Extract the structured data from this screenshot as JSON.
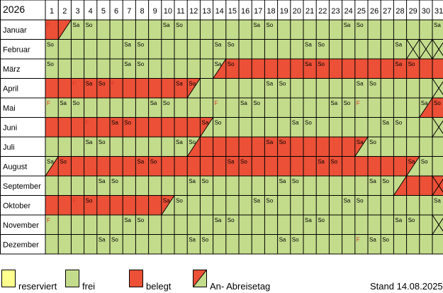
{
  "title": "2026",
  "days": [
    "1",
    "2",
    "3",
    "4",
    "5",
    "6",
    "7",
    "8",
    "9",
    "10",
    "11",
    "12",
    "13",
    "14",
    "15",
    "16",
    "17",
    "18",
    "19",
    "20",
    "21",
    "22",
    "23",
    "24",
    "25",
    "26",
    "27",
    "28",
    "29",
    "30",
    "31"
  ],
  "colors": {
    "frei": "#c3dc8c",
    "belegt": "#ec5037",
    "reserviert": "#ffff90",
    "grid": "#000000",
    "weekend_text": "#000000",
    "holiday_text": "#d9342b"
  },
  "months": [
    {
      "name": "Januar",
      "days_in_month": 31,
      "cells": [
        "F",
        "",
        "Sa",
        "So",
        "",
        "",
        "",
        "",
        "",
        "Sa",
        "So",
        "",
        "",
        "",
        "",
        "",
        "Sa",
        "So",
        "",
        "",
        "",
        "",
        "",
        "Sa",
        "So",
        "",
        "",
        "",
        "",
        "",
        "Sa"
      ],
      "status": [
        "b",
        "ab",
        "f",
        "f",
        "f",
        "f",
        "f",
        "f",
        "f",
        "f",
        "f",
        "f",
        "f",
        "f",
        "f",
        "f",
        "f",
        "f",
        "f",
        "f",
        "f",
        "f",
        "f",
        "f",
        "f",
        "f",
        "f",
        "f",
        "f",
        "f",
        "f"
      ]
    },
    {
      "name": "Februar",
      "days_in_month": 28,
      "cells": [
        "So",
        "",
        "",
        "",
        "",
        "",
        "Sa",
        "So",
        "",
        "",
        "",
        "",
        "",
        "Sa",
        "So",
        "",
        "",
        "",
        "",
        "",
        "Sa",
        "So",
        "",
        "",
        "",
        "",
        "",
        "Sa",
        "",
        "",
        ""
      ],
      "status": [
        "f",
        "f",
        "f",
        "f",
        "f",
        "f",
        "f",
        "f",
        "f",
        "f",
        "f",
        "f",
        "f",
        "f",
        "f",
        "f",
        "f",
        "f",
        "f",
        "f",
        "f",
        "f",
        "f",
        "f",
        "f",
        "f",
        "f",
        "f",
        "x",
        "x",
        "x"
      ]
    },
    {
      "name": "März",
      "days_in_month": 31,
      "cells": [
        "So",
        "",
        "",
        "",
        "",
        "",
        "Sa",
        "So",
        "",
        "",
        "",
        "",
        "",
        "Sa",
        "So",
        "",
        "",
        "",
        "",
        "",
        "Sa",
        "So",
        "",
        "",
        "",
        "",
        "",
        "Sa",
        "So",
        "",
        ""
      ],
      "status": [
        "f",
        "f",
        "f",
        "f",
        "f",
        "f",
        "f",
        "f",
        "f",
        "f",
        "f",
        "f",
        "f",
        "fb",
        "b",
        "b",
        "b",
        "b",
        "b",
        "b",
        "b",
        "b",
        "b",
        "b",
        "b",
        "b",
        "b",
        "b",
        "b",
        "b",
        "b"
      ]
    },
    {
      "name": "April",
      "days_in_month": 30,
      "cells": [
        "",
        "",
        "F",
        "Sa",
        "So",
        "F",
        "",
        "",
        "",
        "",
        "Sa",
        "So",
        "",
        "",
        "",
        "",
        "",
        "Sa",
        "So",
        "",
        "",
        "",
        "",
        "",
        "Sa",
        "So",
        "",
        "",
        "",
        "",
        ""
      ],
      "status": [
        "b",
        "b",
        "b",
        "b",
        "b",
        "b",
        "b",
        "b",
        "b",
        "b",
        "b",
        "bf",
        "f",
        "f",
        "f",
        "f",
        "f",
        "f",
        "f",
        "f",
        "f",
        "f",
        "f",
        "f",
        "f",
        "f",
        "f",
        "f",
        "f",
        "f",
        "x"
      ]
    },
    {
      "name": "Mai",
      "days_in_month": 31,
      "cells": [
        "F",
        "Sa",
        "So",
        "",
        "",
        "",
        "",
        "",
        "Sa",
        "So",
        "",
        "",
        "",
        "F",
        "",
        "Sa",
        "So",
        "",
        "",
        "",
        "",
        "",
        "Sa",
        "So",
        "F",
        "",
        "",
        "",
        "",
        "Sa",
        "So"
      ],
      "status": [
        "f",
        "f",
        "f",
        "f",
        "f",
        "f",
        "f",
        "f",
        "f",
        "f",
        "f",
        "f",
        "f",
        "f",
        "f",
        "f",
        "f",
        "f",
        "f",
        "f",
        "f",
        "f",
        "f",
        "f",
        "f",
        "f",
        "f",
        "f",
        "f",
        "fb",
        "b"
      ]
    },
    {
      "name": "Juni",
      "days_in_month": 30,
      "cells": [
        "",
        "",
        "",
        "F",
        "",
        "Sa",
        "So",
        "",
        "",
        "",
        "",
        "",
        "Sa",
        "So",
        "",
        "",
        "",
        "",
        "",
        "Sa",
        "So",
        "",
        "",
        "",
        "",
        "",
        "Sa",
        "So",
        "",
        "",
        ""
      ],
      "status": [
        "b",
        "b",
        "b",
        "b",
        "b",
        "b",
        "b",
        "b",
        "b",
        "b",
        "b",
        "b",
        "bf",
        "f",
        "f",
        "f",
        "f",
        "f",
        "f",
        "f",
        "f",
        "f",
        "f",
        "f",
        "f",
        "f",
        "f",
        "f",
        "f",
        "f",
        "x"
      ]
    },
    {
      "name": "Juli",
      "days_in_month": 31,
      "cells": [
        "",
        "",
        "",
        "Sa",
        "So",
        "",
        "",
        "",
        "",
        "",
        "Sa",
        "So",
        "",
        "",
        "",
        "",
        "",
        "Sa",
        "So",
        "",
        "",
        "",
        "",
        "",
        "Sa",
        "So",
        "",
        "",
        "",
        "",
        ""
      ],
      "status": [
        "f",
        "f",
        "f",
        "f",
        "f",
        "f",
        "f",
        "f",
        "f",
        "f",
        "f",
        "fb",
        "b",
        "b",
        "b",
        "b",
        "b",
        "b",
        "b",
        "b",
        "b",
        "b",
        "b",
        "b",
        "bf",
        "f",
        "f",
        "f",
        "f",
        "f",
        "f"
      ]
    },
    {
      "name": "August",
      "days_in_month": 31,
      "cells": [
        "Sa",
        "So",
        "",
        "",
        "",
        "",
        "",
        "Sa",
        "So",
        "",
        "",
        "",
        "",
        "",
        "Sa",
        "So",
        "",
        "",
        "",
        "",
        "",
        "Sa",
        "So",
        "",
        "",
        "",
        "",
        "",
        "Sa",
        "So",
        ""
      ],
      "status": [
        "fb",
        "b",
        "b",
        "b",
        "b",
        "b",
        "b",
        "b",
        "b",
        "b",
        "b",
        "b",
        "b",
        "b",
        "b",
        "b",
        "b",
        "b",
        "b",
        "b",
        "b",
        "b",
        "b",
        "b",
        "b",
        "b",
        "b",
        "b",
        "bf",
        "f",
        "f"
      ]
    },
    {
      "name": "September",
      "days_in_month": 30,
      "cells": [
        "",
        "",
        "",
        "",
        "Sa",
        "So",
        "",
        "",
        "",
        "",
        "",
        "Sa",
        "So",
        "",
        "",
        "",
        "",
        "",
        "Sa",
        "So",
        "",
        "",
        "",
        "",
        "",
        "Sa",
        "So",
        "",
        "",
        "",
        ""
      ],
      "status": [
        "f",
        "f",
        "f",
        "f",
        "f",
        "f",
        "f",
        "f",
        "f",
        "f",
        "f",
        "f",
        "f",
        "f",
        "f",
        "f",
        "f",
        "f",
        "f",
        "f",
        "f",
        "f",
        "f",
        "f",
        "f",
        "f",
        "f",
        "fb",
        "b",
        "b",
        "bx"
      ]
    },
    {
      "name": "Oktober",
      "days_in_month": 31,
      "cells": [
        "",
        "",
        "F",
        "So",
        "",
        "",
        "",
        "",
        "",
        "Sa",
        "So",
        "",
        "",
        "",
        "",
        "",
        "Sa",
        "So",
        "",
        "",
        "",
        "",
        "",
        "Sa",
        "So",
        "",
        "",
        "",
        "",
        "",
        "Sa"
      ],
      "status": [
        "b",
        "b",
        "b",
        "b",
        "b",
        "b",
        "b",
        "b",
        "b",
        "bf",
        "f",
        "f",
        "f",
        "f",
        "f",
        "f",
        "f",
        "f",
        "f",
        "f",
        "f",
        "f",
        "f",
        "f",
        "f",
        "f",
        "f",
        "f",
        "f",
        "f",
        "f"
      ]
    },
    {
      "name": "November",
      "days_in_month": 30,
      "cells": [
        "F",
        "",
        "",
        "",
        "",
        "",
        "Sa",
        "So",
        "",
        "",
        "",
        "",
        "",
        "Sa",
        "So",
        "",
        "",
        "",
        "",
        "",
        "Sa",
        "So",
        "",
        "",
        "",
        "",
        "",
        "Sa",
        "So",
        "",
        ""
      ],
      "status": [
        "f",
        "f",
        "f",
        "f",
        "f",
        "f",
        "f",
        "f",
        "f",
        "f",
        "f",
        "f",
        "f",
        "f",
        "f",
        "f",
        "f",
        "f",
        "f",
        "f",
        "f",
        "f",
        "f",
        "f",
        "f",
        "f",
        "f",
        "f",
        "f",
        "f",
        "x"
      ]
    },
    {
      "name": "Dezember",
      "days_in_month": 31,
      "cells": [
        "",
        "",
        "",
        "",
        "Sa",
        "So",
        "",
        "",
        "",
        "",
        "",
        "Sa",
        "So",
        "",
        "",
        "",
        "",
        "",
        "Sa",
        "So",
        "",
        "",
        "",
        "",
        "F",
        "Sa",
        "So",
        "",
        "",
        "",
        ""
      ],
      "status": [
        "f",
        "f",
        "f",
        "f",
        "f",
        "f",
        "f",
        "f",
        "f",
        "f",
        "f",
        "f",
        "f",
        "f",
        "f",
        "f",
        "f",
        "f",
        "f",
        "f",
        "f",
        "f",
        "f",
        "f",
        "f",
        "f",
        "f",
        "f",
        "f",
        "f",
        "f"
      ]
    }
  ],
  "legend": [
    {
      "key": "reserviert",
      "label": "reserviert"
    },
    {
      "key": "frei",
      "label": "frei"
    },
    {
      "key": "belegt",
      "label": "belegt"
    },
    {
      "key": "wechsel",
      "label": "An- Abreisetag"
    }
  ],
  "stand": "Stand 14.08.2025"
}
